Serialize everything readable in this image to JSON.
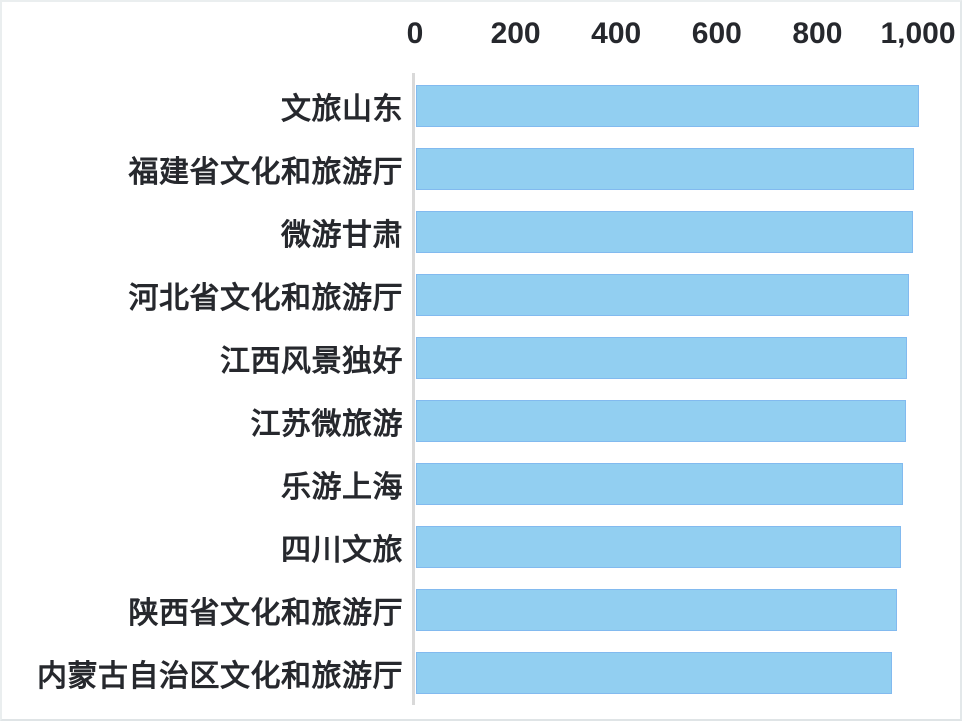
{
  "chart_data": {
    "type": "bar",
    "orientation": "horizontal",
    "title": "",
    "xlabel": "",
    "ylabel": "",
    "categories": [
      "文旅山东",
      "福建省文化和旅游厅",
      "微游甘肃",
      "河北省文化和旅游厅",
      "江西风景独好",
      "江苏微旅游",
      "乐游上海",
      "四川文旅",
      "陕西省文化和旅游厅",
      "内蒙古自治区文化和旅游厅"
    ],
    "values": [
      1000,
      990,
      988,
      980,
      976,
      974,
      968,
      964,
      956,
      946
    ],
    "xlim": [
      0,
      1000
    ],
    "x_ticks": [
      {
        "label": "0",
        "value": 0
      },
      {
        "label": "200",
        "value": 200
      },
      {
        "label": "400",
        "value": 400
      },
      {
        "label": "600",
        "value": 600
      },
      {
        "label": "800",
        "value": 800
      },
      {
        "label": "1,000",
        "value": 1000
      }
    ],
    "axis_position": "top",
    "grid": false,
    "legend": "none",
    "colors": {
      "bar_fill": "#92CFF1",
      "bar_border": "#74A9EC",
      "axis_line": "#D9D9D9",
      "tick_text": "#26282D",
      "label_text": "#26282D",
      "background": "#FFFFFF",
      "frame_border": "#E7EBED"
    }
  }
}
